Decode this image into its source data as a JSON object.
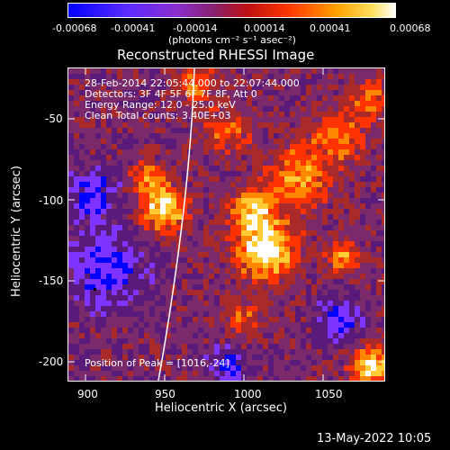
{
  "colorbar": {
    "tick_labels": [
      "-0.00068",
      "-0.00041",
      "-0.00014",
      "0.00014",
      "0.00041",
      "0.00068"
    ],
    "unit_label": "(photons cm⁻² s⁻¹ asec⁻²)"
  },
  "title": "Reconstructed RHESSI Image",
  "info": {
    "line1": "28-Feb-2014 22:05:44.000 to 22:07:44.000",
    "line2": "Detectors: 3F 4F 5F 6F 7F 8F, Att 0",
    "line3": "Energy Range: 12.0 - 25.0 keV",
    "line4": "Clean    Total counts: 3.40E+03"
  },
  "peak_label": "Position of Peak = [1016,-24]",
  "axes": {
    "xlabel": "Heliocentric X (arcsec)",
    "ylabel": "Heliocentric Y (arcsec)",
    "x_ticks": [
      "900",
      "950",
      "1000",
      "1050"
    ],
    "y_ticks": [
      "-50",
      "-100",
      "-150",
      "-200"
    ]
  },
  "footer_date": "13-May-2022 10:05",
  "chart_data": {
    "type": "heatmap",
    "title": "Reconstructed RHESSI Image",
    "xlabel": "Heliocentric X (arcsec)",
    "ylabel": "Heliocentric Y (arcsec)",
    "xlim": [
      890,
      1085
    ],
    "ylim": [
      -210,
      -25
    ],
    "color_range": [
      -0.00068,
      0.00068
    ],
    "peak": [
      1016,
      -24
    ],
    "colormap": [
      "#0000ff",
      "#7f33ff",
      "#5a1a7a",
      "#7a2a6a",
      "#aa2a2a",
      "#ff3300",
      "#ff8800",
      "#ffcc33",
      "#ffffff"
    ]
  }
}
